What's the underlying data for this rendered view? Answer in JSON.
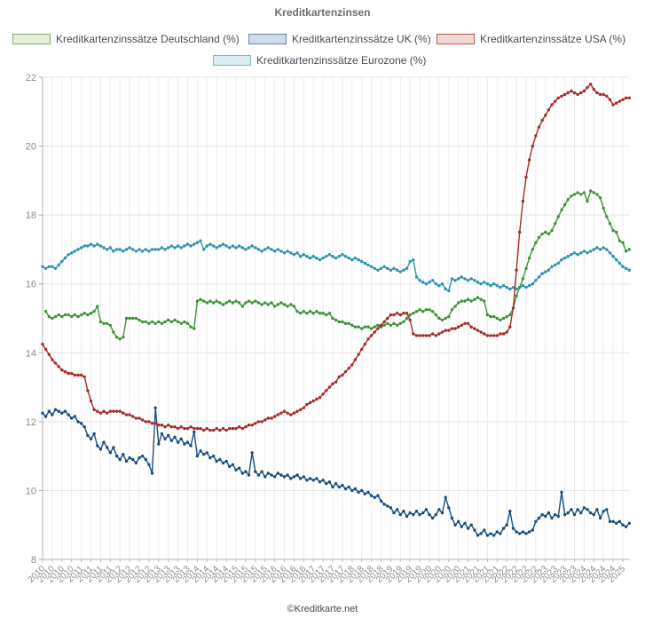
{
  "title": "Kreditkartenzinsen",
  "footer": "©Kreditkarte.net",
  "chart_data": {
    "type": "line",
    "title": "Kreditkartenzinsen",
    "xlabel": "",
    "ylabel": "",
    "ylim": [
      8,
      22
    ],
    "y_ticks": [
      8,
      10,
      12,
      14,
      16,
      18,
      20,
      22
    ],
    "x_start": "2010-01",
    "x_interval_months": 1,
    "grid": true,
    "legend_position": "top",
    "x_tick_labels": [
      "2010",
      "2010",
      "2010",
      "2010",
      "2011",
      "2011",
      "2011",
      "2011",
      "2012",
      "2012",
      "2012",
      "2012",
      "2013",
      "2013",
      "2013",
      "2013",
      "2014",
      "2014",
      "2014",
      "2014",
      "2015",
      "2015",
      "2015",
      "2015",
      "2016",
      "2016",
      "2016",
      "2016",
      "2017",
      "2017",
      "2017",
      "2017",
      "2018",
      "2018",
      "2018",
      "2018",
      "2019",
      "2019",
      "2019",
      "2019",
      "2020",
      "2020",
      "2020",
      "2020",
      "2021",
      "2021",
      "2021",
      "2021",
      "2022",
      "2022",
      "2022",
      "2022",
      "2023",
      "2023",
      "2023",
      "2023",
      "2024",
      "2024",
      "2024",
      "2024",
      "2025"
    ],
    "series": [
      {
        "name": "Kreditkartenzinssätze Deutschland (%)",
        "color": "#42913c",
        "legend_fill": "#e2efdb",
        "legend_border": "#80ac66",
        "values": [
          null,
          15.2,
          15.05,
          15.0,
          15.05,
          15.1,
          15.05,
          15.1,
          15.1,
          15.05,
          15.1,
          15.05,
          15.1,
          15.15,
          15.1,
          15.15,
          15.2,
          15.35,
          14.9,
          14.85,
          14.85,
          14.8,
          14.6,
          14.45,
          14.4,
          14.45,
          15.0,
          15.0,
          15.0,
          15.0,
          14.95,
          14.9,
          14.9,
          14.85,
          14.9,
          14.85,
          14.9,
          14.85,
          14.9,
          14.95,
          14.9,
          14.95,
          14.9,
          14.85,
          14.9,
          14.85,
          14.75,
          14.7,
          15.5,
          15.55,
          15.5,
          15.45,
          15.5,
          15.45,
          15.5,
          15.45,
          15.4,
          15.45,
          15.5,
          15.45,
          15.5,
          15.45,
          15.35,
          15.45,
          15.5,
          15.45,
          15.5,
          15.45,
          15.4,
          15.45,
          15.4,
          15.45,
          15.35,
          15.4,
          15.45,
          15.4,
          15.35,
          15.4,
          15.35,
          15.2,
          15.15,
          15.2,
          15.15,
          15.2,
          15.15,
          15.2,
          15.15,
          15.15,
          15.1,
          15.15,
          15.0,
          14.95,
          14.9,
          14.9,
          14.85,
          14.85,
          14.8,
          14.75,
          14.75,
          14.7,
          14.75,
          14.75,
          14.7,
          14.75,
          14.8,
          14.75,
          14.8,
          14.85,
          14.8,
          14.85,
          14.8,
          14.85,
          14.9,
          15.0,
          15.1,
          15.15,
          15.2,
          15.25,
          15.2,
          15.25,
          15.25,
          15.2,
          15.1,
          15.0,
          14.95,
          15.0,
          15.05,
          15.25,
          15.35,
          15.45,
          15.5,
          15.5,
          15.55,
          15.5,
          15.55,
          15.6,
          15.55,
          15.5,
          15.1,
          15.05,
          15.05,
          15.0,
          14.95,
          15.0,
          15.05,
          15.1,
          15.3,
          15.65,
          15.9,
          16.15,
          16.45,
          16.75,
          17.0,
          17.2,
          17.35,
          17.45,
          17.5,
          17.45,
          17.55,
          17.75,
          17.95,
          18.15,
          18.3,
          18.45,
          18.55,
          18.6,
          18.65,
          18.6,
          18.65,
          18.4,
          18.7,
          18.65,
          18.6,
          18.5,
          18.2,
          17.95,
          17.75,
          17.55,
          17.5,
          17.25,
          17.2,
          16.95,
          17.0
        ]
      },
      {
        "name": "Kreditkartenzinssätze UK (%)",
        "color": "#1c4d7d",
        "legend_fill": "#cfdbe8",
        "legend_border": "#6888ad",
        "values": [
          12.25,
          12.15,
          12.3,
          12.2,
          12.35,
          12.3,
          12.25,
          12.3,
          12.2,
          12.1,
          12.15,
          12.0,
          11.95,
          11.85,
          11.6,
          11.5,
          11.65,
          11.3,
          11.2,
          11.4,
          11.25,
          11.1,
          11.25,
          11.0,
          10.9,
          11.05,
          10.85,
          10.95,
          10.9,
          10.8,
          10.95,
          11.0,
          10.9,
          10.75,
          10.5,
          12.4,
          11.35,
          11.65,
          11.5,
          11.6,
          11.45,
          11.55,
          11.4,
          11.5,
          11.35,
          11.4,
          11.3,
          11.7,
          11.0,
          11.15,
          11.05,
          11.1,
          10.95,
          11.0,
          10.85,
          10.9,
          10.8,
          10.85,
          10.7,
          10.75,
          10.6,
          10.65,
          10.5,
          10.55,
          10.45,
          11.1,
          10.55,
          10.45,
          10.55,
          10.4,
          10.5,
          10.45,
          10.4,
          10.5,
          10.45,
          10.4,
          10.45,
          10.35,
          10.4,
          10.45,
          10.35,
          10.4,
          10.3,
          10.35,
          10.3,
          10.35,
          10.25,
          10.3,
          10.2,
          10.25,
          10.1,
          10.2,
          10.1,
          10.15,
          10.05,
          10.1,
          10.0,
          10.05,
          9.95,
          10.0,
          9.9,
          9.95,
          9.85,
          9.8,
          9.85,
          9.7,
          9.6,
          9.55,
          9.5,
          9.35,
          9.45,
          9.3,
          9.4,
          9.25,
          9.35,
          9.3,
          9.4,
          9.3,
          9.35,
          9.45,
          9.3,
          9.2,
          9.3,
          9.45,
          9.35,
          9.8,
          9.5,
          9.2,
          9.0,
          9.1,
          8.95,
          9.05,
          8.9,
          9.0,
          8.85,
          8.7,
          8.75,
          8.85,
          8.7,
          8.75,
          8.7,
          8.8,
          8.75,
          8.9,
          9.0,
          9.4,
          8.9,
          8.8,
          8.75,
          8.8,
          8.75,
          8.8,
          8.85,
          9.1,
          9.2,
          9.3,
          9.25,
          9.35,
          9.2,
          9.3,
          9.25,
          9.95,
          9.3,
          9.35,
          9.45,
          9.3,
          9.45,
          9.35,
          9.5,
          9.45,
          9.35,
          9.3,
          9.45,
          9.2,
          9.4,
          9.45,
          9.1,
          9.1,
          9.05,
          9.1,
          9.0,
          8.95,
          9.05
        ]
      },
      {
        "name": "Kreditkartenzinssätze USA (%)",
        "color": "#a62c2c",
        "legend_fill": "#f3d7d5",
        "legend_border": "#bf5a55",
        "values": [
          14.25,
          14.1,
          13.95,
          13.8,
          13.7,
          13.6,
          13.5,
          13.45,
          13.4,
          13.4,
          13.35,
          13.35,
          13.35,
          13.3,
          12.9,
          12.6,
          12.35,
          12.3,
          12.25,
          12.3,
          12.25,
          12.3,
          12.3,
          12.3,
          12.3,
          12.25,
          12.2,
          12.2,
          12.15,
          12.1,
          12.1,
          12.05,
          12.0,
          12.0,
          11.95,
          11.95,
          11.9,
          11.9,
          11.85,
          11.9,
          11.85,
          11.85,
          11.8,
          11.85,
          11.8,
          11.8,
          11.85,
          11.8,
          11.8,
          11.8,
          11.75,
          11.8,
          11.75,
          11.75,
          11.8,
          11.75,
          11.8,
          11.75,
          11.8,
          11.8,
          11.8,
          11.85,
          11.8,
          11.85,
          11.9,
          11.9,
          11.95,
          12.0,
          12.0,
          12.05,
          12.1,
          12.1,
          12.15,
          12.2,
          12.25,
          12.3,
          12.25,
          12.2,
          12.25,
          12.3,
          12.35,
          12.4,
          12.5,
          12.55,
          12.6,
          12.65,
          12.7,
          12.8,
          12.9,
          13.0,
          13.1,
          13.15,
          13.3,
          13.35,
          13.45,
          13.55,
          13.65,
          13.8,
          13.95,
          14.1,
          14.25,
          14.4,
          14.5,
          14.6,
          14.7,
          14.8,
          14.9,
          15.0,
          15.1,
          15.1,
          15.15,
          15.1,
          15.15,
          15.15,
          14.95,
          14.55,
          14.5,
          14.5,
          14.5,
          14.5,
          14.5,
          14.55,
          14.5,
          14.55,
          14.6,
          14.65,
          14.65,
          14.7,
          14.7,
          14.75,
          14.8,
          14.85,
          14.85,
          14.75,
          14.7,
          14.65,
          14.6,
          14.55,
          14.5,
          14.5,
          14.5,
          14.5,
          14.55,
          14.55,
          14.6,
          14.75,
          15.3,
          16.4,
          17.5,
          18.4,
          19.1,
          19.6,
          20.0,
          20.3,
          20.55,
          20.75,
          20.9,
          21.05,
          21.2,
          21.3,
          21.4,
          21.45,
          21.5,
          21.55,
          21.6,
          21.55,
          21.5,
          21.55,
          21.6,
          21.7,
          21.8,
          21.65,
          21.55,
          21.5,
          21.5,
          21.45,
          21.35,
          21.2,
          21.25,
          21.3,
          21.35,
          21.4,
          21.4
        ]
      },
      {
        "name": "Kreditkartenzinssätze Eurozone (%)",
        "color": "#2e93ae",
        "legend_fill": "#d9edf3",
        "legend_border": "#79b8ca",
        "values": [
          16.5,
          16.45,
          16.5,
          16.5,
          16.45,
          16.55,
          16.65,
          16.75,
          16.85,
          16.9,
          16.95,
          17.0,
          17.05,
          17.1,
          17.1,
          17.15,
          17.1,
          17.15,
          17.1,
          17.05,
          17.0,
          17.05,
          16.95,
          17.0,
          17.0,
          16.95,
          17.0,
          17.05,
          17.0,
          16.95,
          17.0,
          16.95,
          17.0,
          16.95,
          17.0,
          17.0,
          17.0,
          17.05,
          17.0,
          17.05,
          17.1,
          17.05,
          17.1,
          17.05,
          17.1,
          17.15,
          17.1,
          17.15,
          17.2,
          17.25,
          17.0,
          17.1,
          17.15,
          17.1,
          17.05,
          17.1,
          17.15,
          17.1,
          17.05,
          17.1,
          17.05,
          17.1,
          17.05,
          17.0,
          17.05,
          17.1,
          17.05,
          17.0,
          16.95,
          17.0,
          17.05,
          17.0,
          16.95,
          17.0,
          16.95,
          16.9,
          16.95,
          16.9,
          16.85,
          16.9,
          16.8,
          16.85,
          16.8,
          16.75,
          16.8,
          16.75,
          16.7,
          16.75,
          16.8,
          16.85,
          16.8,
          16.75,
          16.8,
          16.85,
          16.8,
          16.75,
          16.7,
          16.75,
          16.7,
          16.65,
          16.6,
          16.55,
          16.5,
          16.45,
          16.4,
          16.45,
          16.5,
          16.45,
          16.4,
          16.45,
          16.4,
          16.35,
          16.4,
          16.45,
          16.65,
          16.7,
          16.2,
          16.1,
          16.05,
          16.0,
          16.05,
          16.1,
          16.0,
          15.95,
          16.0,
          15.85,
          15.8,
          16.15,
          16.1,
          16.15,
          16.2,
          16.15,
          16.1,
          16.15,
          16.1,
          16.05,
          16.0,
          16.05,
          16.0,
          15.95,
          16.0,
          15.95,
          15.9,
          15.95,
          15.9,
          15.85,
          15.9,
          15.85,
          15.9,
          15.95,
          15.9,
          15.95,
          16.0,
          16.1,
          16.2,
          16.3,
          16.35,
          16.4,
          16.5,
          16.55,
          16.6,
          16.7,
          16.75,
          16.8,
          16.85,
          16.9,
          16.85,
          16.9,
          16.95,
          16.9,
          16.95,
          17.0,
          17.05,
          17.0,
          17.05,
          17.0,
          16.9,
          16.8,
          16.7,
          16.6,
          16.5,
          16.45,
          16.4
        ]
      }
    ]
  }
}
